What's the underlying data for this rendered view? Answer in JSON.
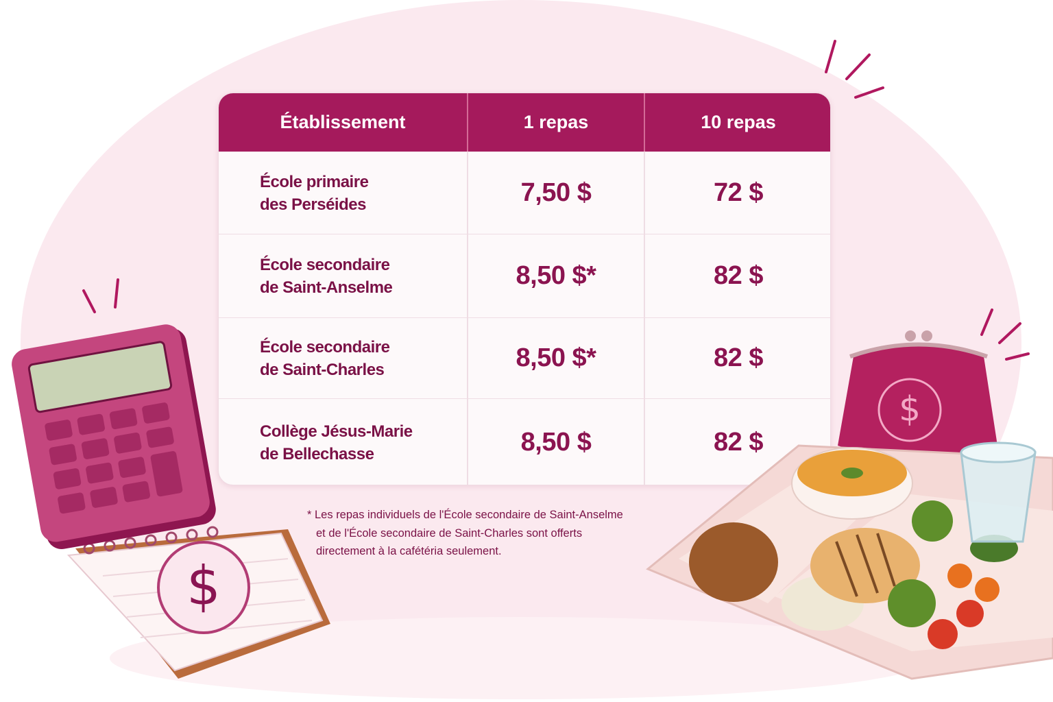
{
  "table": {
    "headers": [
      "Établissement",
      "1 repas",
      "10 repas"
    ],
    "rows": [
      {
        "name": [
          "École primaire",
          "des Perséides"
        ],
        "one_meal": "7,50 $",
        "ten_meals": "72 $"
      },
      {
        "name": [
          "École secondaire",
          "de Saint-Anselme"
        ],
        "one_meal": "8,50 $*",
        "ten_meals": "82 $"
      },
      {
        "name": [
          "École secondaire",
          "de Saint-Charles"
        ],
        "one_meal": "8,50 $*",
        "ten_meals": "82 $"
      },
      {
        "name": [
          "Collège Jésus-Marie",
          "de Bellechasse"
        ],
        "one_meal": "8,50 $",
        "ten_meals": "82 $"
      }
    ]
  },
  "footnote": [
    "* Les repas individuels de l'École secondaire de Saint-Anselme",
    "et de l'École secondaire de Saint-Charles sont offerts",
    "directement à la cafétéria seulement."
  ],
  "icons": {
    "dollar": "$"
  }
}
